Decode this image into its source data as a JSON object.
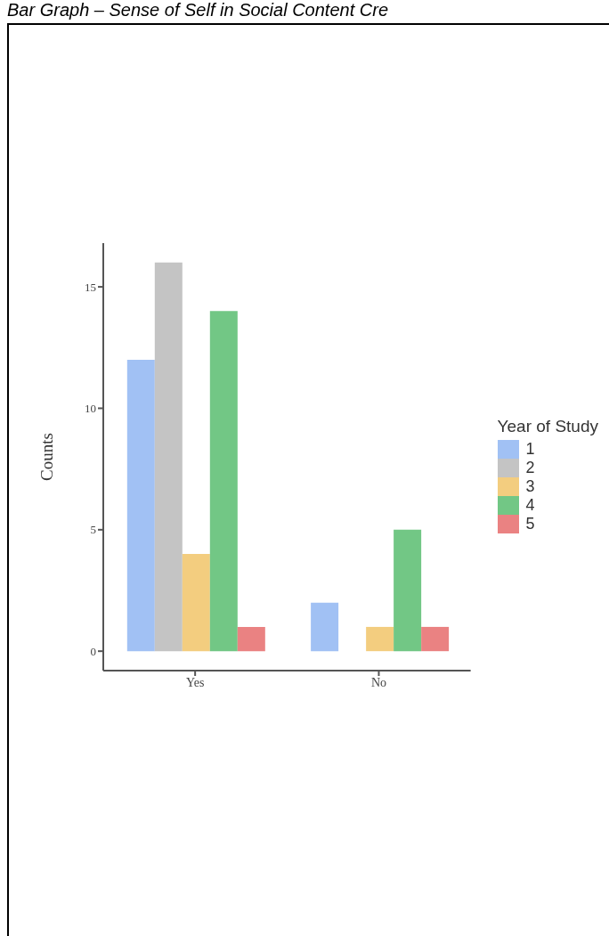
{
  "chart_data": {
    "type": "bar",
    "title": "Bar Graph – Sense of Self in Social Content Cre",
    "ylabel": "Counts",
    "legend_title": "Year of Study",
    "categories": [
      "Yes",
      "No"
    ],
    "series": [
      {
        "name": "1",
        "color": "#a1c1f4",
        "values": [
          12,
          2
        ]
      },
      {
        "name": "2",
        "color": "#c4c4c4",
        "values": [
          16,
          0
        ]
      },
      {
        "name": "3",
        "color": "#f3cd7f",
        "values": [
          4,
          1
        ]
      },
      {
        "name": "4",
        "color": "#72c785",
        "values": [
          14,
          5
        ]
      },
      {
        "name": "5",
        "color": "#ea8282",
        "values": [
          1,
          1
        ]
      }
    ],
    "ylim": [
      -0.8,
      16.8
    ],
    "yticks": [
      0,
      5,
      10,
      15
    ],
    "grid": false,
    "legend": "right"
  }
}
